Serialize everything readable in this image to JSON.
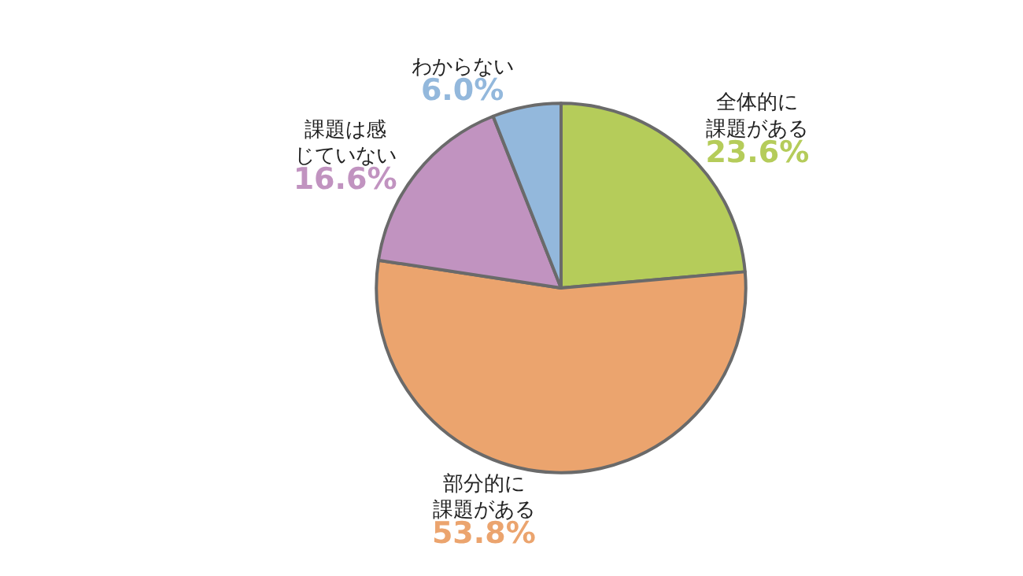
{
  "chart_data": {
    "type": "pie",
    "categories": [
      "全体的に課題がある",
      "部分的に課題がある",
      "課題は感じていない",
      "わからない"
    ],
    "values": [
      23.6,
      53.8,
      16.6,
      6.0
    ],
    "colors": [
      "#b5cc5a",
      "#eba46e",
      "#c193c0",
      "#93b8dc"
    ],
    "value_labels": [
      "23.6%",
      "53.8%",
      "16.6%",
      "6.0%"
    ],
    "legend": false
  }
}
